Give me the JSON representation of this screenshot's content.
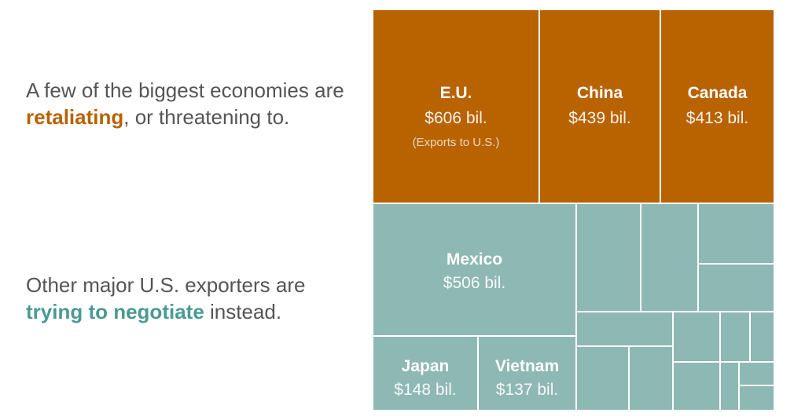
{
  "colors": {
    "retaliating": "#B86200",
    "negotiating": "#8EB8B4",
    "retaliating_text": "#B86200",
    "negotiating_text": "#4A9A92",
    "border": "#ffffff"
  },
  "captions": {
    "top": {
      "pre": "A few of the biggest economies are ",
      "highlight": "retaliating",
      "post": ", or threatening to."
    },
    "bottom": {
      "pre": "Other major U.S. exporters are ",
      "highlight": "trying to negotiate",
      "post": " instead."
    }
  },
  "chart_data": {
    "type": "treemap",
    "groups": [
      {
        "name": "retaliating",
        "items": [
          {
            "label": "E.U.",
            "value": 606,
            "value_label": "$606 bil.",
            "note": "(Exports to U.S.)"
          },
          {
            "label": "China",
            "value": 439,
            "value_label": "$439 bil."
          },
          {
            "label": "Canada",
            "value": 413,
            "value_label": "$413 bil."
          }
        ]
      },
      {
        "name": "negotiating",
        "items": [
          {
            "label": "Mexico",
            "value": 506,
            "value_label": "$506 bil."
          },
          {
            "label": "Japan",
            "value": 148,
            "value_label": "$148 bil."
          },
          {
            "label": "Vietnam",
            "value": 137,
            "value_label": "$137 bil."
          }
        ],
        "unlabeled_count": 17
      }
    ]
  }
}
